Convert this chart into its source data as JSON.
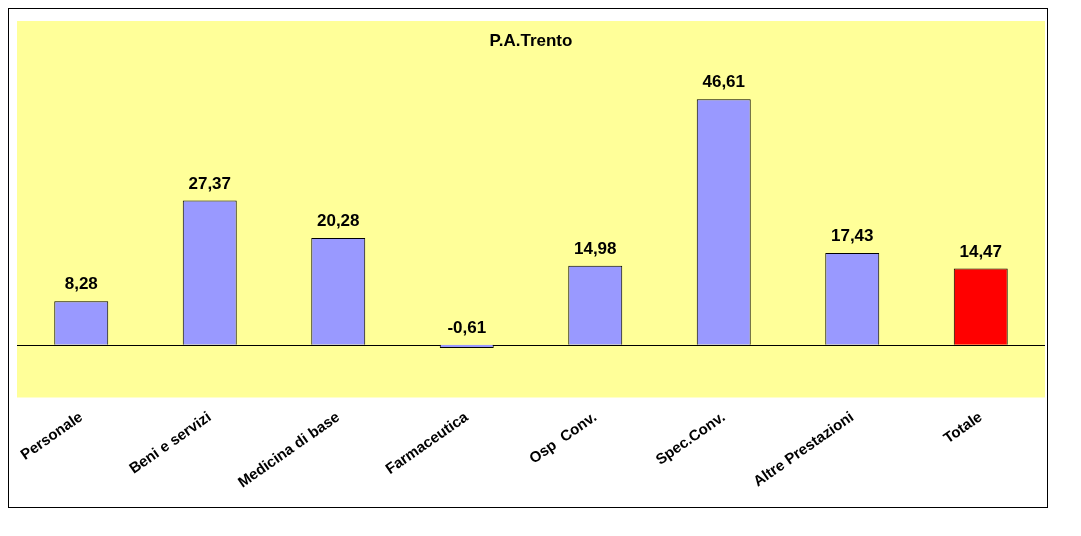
{
  "chart_data": {
    "type": "bar",
    "title": "P.A.Trento",
    "categories": [
      "Personale",
      "Beni e servizi",
      "Medicina di base",
      "Farmaceutica",
      "Osp  Conv.",
      "Spec.Conv.",
      "Altre Prestazioni",
      "Totale"
    ],
    "values": [
      8.28,
      27.37,
      20.28,
      -0.61,
      14.98,
      46.61,
      17.43,
      14.47
    ],
    "colors": [
      "#9999ff",
      "#9999ff",
      "#9999ff",
      "#9999ff",
      "#9999ff",
      "#9999ff",
      "#9999ff",
      "#ff0000"
    ],
    "value_labels": [
      "8,28",
      "27,37",
      "20,28",
      "-0,61",
      "14,98",
      "46,61",
      "17,43",
      "14,47"
    ]
  }
}
